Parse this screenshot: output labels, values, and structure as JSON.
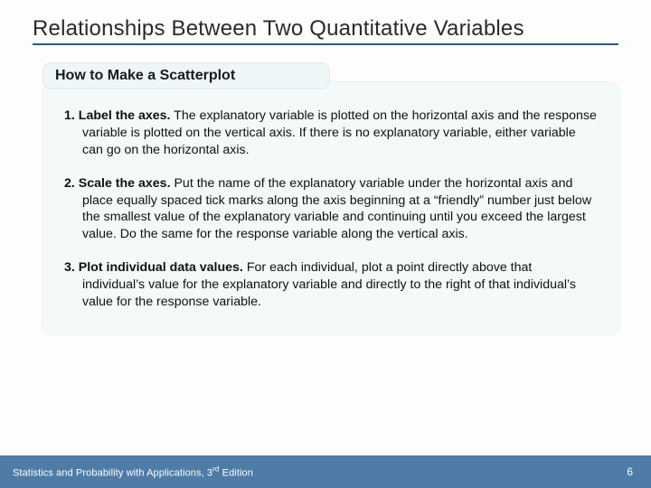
{
  "colors": {
    "title_underline": "#2a5a8a",
    "subheading_bg": "#eef6f7",
    "mainbox_bg": "#f4f9fa",
    "footer_bg": "#4e7ca6",
    "footer_text": "#ffffff",
    "body_text": "#111111"
  },
  "title": "Relationships Between Two Quantitative Variables",
  "subheading": "How to Make a Scatterplot",
  "steps": [
    {
      "num_label": "1. Label the axes.",
      "rest": " The explanatory variable is plotted on the horizontal axis and the response variable is plotted on the vertical axis. If there is no explanatory variable, either variable can go on the horizontal axis."
    },
    {
      "num_label": "2. Scale the axes.",
      "rest": " Put the name of the explanatory variable under the horizontal axis and place equally spaced tick marks along the axis beginning at a “friendly” number just below the smallest value of the explanatory variable and continuing until you exceed the largest value. Do the same for the response variable along the vertical axis."
    },
    {
      "num_label": "3. Plot individual data values.",
      "rest": " For each individual, plot a point directly above that individual’s value for the explanatory variable and directly to the right of that individual’s value for the response variable."
    }
  ],
  "footer": {
    "book": "Statistics and Probability with Applications, 3",
    "edition_suffix": "rd",
    "edition_word": " Edition",
    "page": "6"
  }
}
